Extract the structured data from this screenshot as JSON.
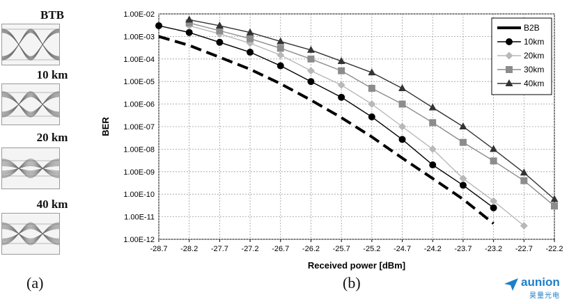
{
  "panels": {
    "a_label": "(a)",
    "b_label": "(b)"
  },
  "eye_diagrams": [
    {
      "label": "BTB"
    },
    {
      "label": "10 km"
    },
    {
      "label": "20 km"
    },
    {
      "label": "40 km"
    }
  ],
  "logo": {
    "name": "aunion",
    "sub": "昊量光电",
    "color": "#1e7fc8"
  },
  "chart_data": {
    "type": "line",
    "xlabel": "Received power [dBm]",
    "ylabel": "BER",
    "x_ticks": [
      "-28.7",
      "-28.2",
      "-27.7",
      "-27.2",
      "-26.7",
      "-26.2",
      "-25.7",
      "-25.2",
      "-24.7",
      "-24.2",
      "-23.7",
      "-23.2",
      "-22.7",
      "-22.2"
    ],
    "y_ticks": [
      "1.00E-02",
      "1.00E-03",
      "1.00E-04",
      "1.00E-05",
      "1.00E-06",
      "1.00E-07",
      "1.00E-08",
      "1.00E-09",
      "1.00E-10",
      "1.00E-11",
      "1.00E-12"
    ],
    "xlim": [
      -28.7,
      -22.2
    ],
    "ylim_log10": [
      -12,
      -2
    ],
    "y_scale": "log",
    "grid": true,
    "legend_position": "top-right",
    "series": [
      {
        "name": "B2B",
        "style": "dashed",
        "marker": "none",
        "color": "#000000",
        "points": [
          [
            -28.7,
            0.001
          ],
          [
            -28.2,
            0.0004
          ],
          [
            -27.7,
            0.00012
          ],
          [
            -27.2,
            3.5e-05
          ],
          [
            -26.7,
            8e-06
          ],
          [
            -26.2,
            1.5e-06
          ],
          [
            -25.7,
            2.5e-07
          ],
          [
            -25.2,
            3.5e-08
          ],
          [
            -24.7,
            4e-09
          ],
          [
            -24.2,
            5e-10
          ],
          [
            -23.7,
            6e-11
          ],
          [
            -23.2,
            5e-12
          ]
        ]
      },
      {
        "name": "10km",
        "style": "solid",
        "marker": "circle",
        "color": "#000000",
        "points": [
          [
            -28.7,
            0.003
          ],
          [
            -28.2,
            0.0015
          ],
          [
            -27.7,
            0.00055
          ],
          [
            -27.2,
            0.0002
          ],
          [
            -26.7,
            5e-05
          ],
          [
            -26.2,
            1e-05
          ],
          [
            -25.7,
            2e-06
          ],
          [
            -25.2,
            2.7e-07
          ],
          [
            -24.7,
            2.7e-08
          ],
          [
            -24.2,
            2e-09
          ],
          [
            -23.7,
            2.5e-10
          ],
          [
            -23.2,
            2.5e-11
          ]
        ]
      },
      {
        "name": "20km",
        "style": "solid",
        "marker": "diamond",
        "color": "#b8b8b8",
        "points": [
          [
            -28.2,
            0.003
          ],
          [
            -27.7,
            0.0013
          ],
          [
            -27.2,
            0.0005
          ],
          [
            -26.7,
            0.00015
          ],
          [
            -26.2,
            3e-05
          ],
          [
            -25.7,
            7e-06
          ],
          [
            -25.2,
            1e-06
          ],
          [
            -24.7,
            1e-07
          ],
          [
            -24.2,
            1e-08
          ],
          [
            -23.7,
            5e-10
          ],
          [
            -23.2,
            5e-11
          ],
          [
            -22.7,
            4e-12
          ]
        ]
      },
      {
        "name": "30km",
        "style": "solid",
        "marker": "square",
        "color": "#8c8c8c",
        "points": [
          [
            -28.2,
            0.004
          ],
          [
            -27.7,
            0.0018
          ],
          [
            -27.2,
            0.0008
          ],
          [
            -26.7,
            0.0003
          ],
          [
            -26.2,
            0.0001
          ],
          [
            -25.7,
            3e-05
          ],
          [
            -25.2,
            5e-06
          ],
          [
            -24.7,
            1e-06
          ],
          [
            -24.2,
            1.5e-07
          ],
          [
            -23.7,
            2e-08
          ],
          [
            -23.2,
            3e-09
          ],
          [
            -22.7,
            4e-10
          ],
          [
            -22.2,
            3e-11
          ]
        ]
      },
      {
        "name": "40km",
        "style": "solid",
        "marker": "triangle",
        "color": "#333333",
        "points": [
          [
            -28.2,
            0.0055
          ],
          [
            -27.7,
            0.003
          ],
          [
            -27.2,
            0.0015
          ],
          [
            -26.7,
            0.0006
          ],
          [
            -26.2,
            0.00025
          ],
          [
            -25.7,
            8e-05
          ],
          [
            -25.2,
            2.5e-05
          ],
          [
            -24.7,
            5e-06
          ],
          [
            -24.2,
            7e-07
          ],
          [
            -23.7,
            1e-07
          ],
          [
            -23.2,
            1e-08
          ],
          [
            -22.7,
            9e-10
          ],
          [
            -22.2,
            6e-11
          ]
        ]
      }
    ]
  }
}
